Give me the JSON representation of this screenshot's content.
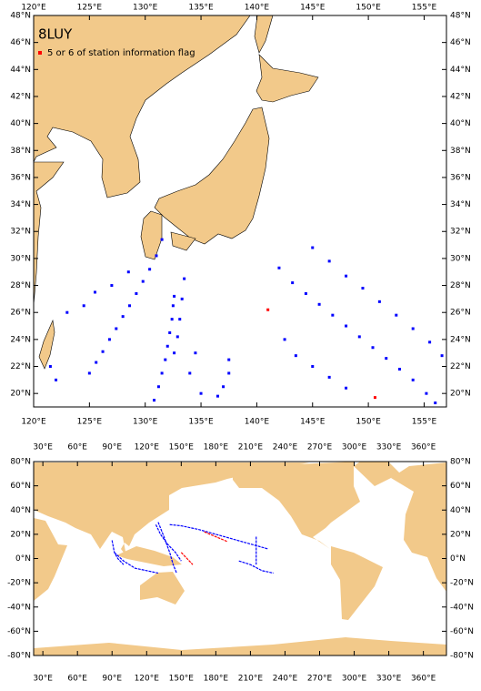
{
  "top_map": {
    "title": "8LUY",
    "legend": "5 or 6 of station information flag",
    "xlim": [
      120,
      157
    ],
    "ylim": [
      19,
      48
    ],
    "xticks": [
      {
        "value": 120,
        "label": "120°E"
      },
      {
        "value": 125,
        "label": "125°E"
      },
      {
        "value": 130,
        "label": "130°E"
      },
      {
        "value": 135,
        "label": "135°E"
      },
      {
        "value": 140,
        "label": "140°E"
      },
      {
        "value": 145,
        "label": "145°E"
      },
      {
        "value": 150,
        "label": "150°E"
      },
      {
        "value": 155,
        "label": "155°E"
      }
    ],
    "yticks": [
      {
        "value": 20,
        "label": "20°N"
      },
      {
        "value": 22,
        "label": "22°N"
      },
      {
        "value": 24,
        "label": "24°N"
      },
      {
        "value": 26,
        "label": "26°N"
      },
      {
        "value": 28,
        "label": "28°N"
      },
      {
        "value": 30,
        "label": "30°N"
      },
      {
        "value": 32,
        "label": "32°N"
      },
      {
        "value": 34,
        "label": "34°N"
      },
      {
        "value": 36,
        "label": "36°N"
      },
      {
        "value": 38,
        "label": "38°N"
      },
      {
        "value": 40,
        "label": "40°N"
      },
      {
        "value": 42,
        "label": "42°N"
      },
      {
        "value": 44,
        "label": "44°N"
      },
      {
        "value": 46,
        "label": "46°N"
      },
      {
        "value": 48,
        "label": "48°N"
      }
    ],
    "station_color": "#0000ff",
    "flag_color": "#ff0000",
    "stations": [
      [
        125,
        21.5
      ],
      [
        125.6,
        22.3
      ],
      [
        126.2,
        23.1
      ],
      [
        126.8,
        24
      ],
      [
        127.4,
        24.8
      ],
      [
        128,
        25.7
      ],
      [
        128.6,
        26.5
      ],
      [
        129.2,
        27.4
      ],
      [
        129.8,
        28.3
      ],
      [
        130.4,
        29.2
      ],
      [
        131,
        30.2
      ],
      [
        131.5,
        31.4
      ],
      [
        130.8,
        19.5
      ],
      [
        131.2,
        20.5
      ],
      [
        131.5,
        21.5
      ],
      [
        131.8,
        22.5
      ],
      [
        132,
        23.5
      ],
      [
        132.2,
        24.5
      ],
      [
        132.4,
        25.5
      ],
      [
        132.5,
        26.5
      ],
      [
        132.6,
        27.2
      ],
      [
        133.5,
        28.5
      ],
      [
        133.3,
        27
      ],
      [
        133.1,
        25.5
      ],
      [
        132.9,
        24.2
      ],
      [
        132.6,
        23
      ],
      [
        142,
        29.3
      ],
      [
        143.2,
        28.2
      ],
      [
        144.4,
        27.4
      ],
      [
        145.6,
        26.6
      ],
      [
        146.8,
        25.8
      ],
      [
        148,
        25
      ],
      [
        149.2,
        24.2
      ],
      [
        150.4,
        23.4
      ],
      [
        151.6,
        22.6
      ],
      [
        152.8,
        21.8
      ],
      [
        154,
        21
      ],
      [
        155.2,
        20
      ],
      [
        156,
        19.3
      ],
      [
        145,
        30.8
      ],
      [
        146.5,
        29.8
      ],
      [
        148,
        28.7
      ],
      [
        149.5,
        27.8
      ],
      [
        151,
        26.8
      ],
      [
        152.5,
        25.8
      ],
      [
        154,
        24.8
      ],
      [
        155.5,
        23.8
      ],
      [
        156.6,
        22.8
      ],
      [
        121.5,
        22
      ],
      [
        122,
        21
      ],
      [
        123,
        26
      ],
      [
        124.5,
        26.5
      ],
      [
        125.5,
        27.5
      ],
      [
        127,
        28
      ],
      [
        128.5,
        29
      ],
      [
        137.5,
        22.5
      ],
      [
        137.5,
        21.5
      ],
      [
        137,
        20.5
      ],
      [
        136.5,
        19.8
      ],
      [
        134.5,
        23
      ],
      [
        134,
        21.5
      ],
      [
        135,
        20
      ],
      [
        142.5,
        24
      ],
      [
        143.5,
        22.8
      ],
      [
        145,
        22
      ],
      [
        146.5,
        21.2
      ],
      [
        148,
        20.4
      ]
    ],
    "flagged": [
      [
        141,
        26.2
      ],
      [
        150.6,
        19.7
      ]
    ]
  },
  "bottom_map": {
    "xlim": [
      22,
      380
    ],
    "ylim": [
      -80,
      80
    ],
    "xticks": [
      {
        "value": 30,
        "label": "30°E"
      },
      {
        "value": 60,
        "label": "60°E"
      },
      {
        "value": 90,
        "label": "90°E"
      },
      {
        "value": 120,
        "label": "120°E"
      },
      {
        "value": 150,
        "label": "150°E"
      },
      {
        "value": 180,
        "label": "180°E"
      },
      {
        "value": 210,
        "label": "210°E"
      },
      {
        "value": 240,
        "label": "240°E"
      },
      {
        "value": 270,
        "label": "270°E"
      },
      {
        "value": 300,
        "label": "300°E"
      },
      {
        "value": 330,
        "label": "330°E"
      },
      {
        "value": 360,
        "label": "360°E"
      }
    ],
    "yticks": [
      {
        "value": -80,
        "label": "-80°N"
      },
      {
        "value": -60,
        "label": "-60°N"
      },
      {
        "value": -40,
        "label": "-40°N"
      },
      {
        "value": -20,
        "label": "-20°N"
      },
      {
        "value": 0,
        "label": "0°N"
      },
      {
        "value": 20,
        "label": "20°N"
      },
      {
        "value": 40,
        "label": "40°N"
      },
      {
        "value": 60,
        "label": "60°N"
      },
      {
        "value": 80,
        "label": "80°N"
      }
    ],
    "tracks": [
      {
        "color": "#0000ff",
        "points": [
          [
            128,
            28
          ],
          [
            132,
            20
          ],
          [
            138,
            12
          ],
          [
            145,
            5
          ],
          [
            150,
            -2
          ]
        ]
      },
      {
        "color": "#0000ff",
        "points": [
          [
            140,
            28
          ],
          [
            150,
            27
          ],
          [
            165,
            24
          ],
          [
            180,
            20
          ],
          [
            195,
            16
          ],
          [
            210,
            12
          ],
          [
            225,
            8
          ]
        ]
      },
      {
        "color": "#0000ff",
        "points": [
          [
            130,
            30
          ],
          [
            135,
            18
          ],
          [
            140,
            5
          ],
          [
            143,
            -5
          ],
          [
            146,
            -12
          ]
        ]
      },
      {
        "color": "#0000ff",
        "points": [
          [
            92,
            5
          ],
          [
            100,
            -2
          ],
          [
            110,
            -8
          ],
          [
            120,
            -10
          ],
          [
            130,
            -12
          ]
        ]
      },
      {
        "color": "#0000ff",
        "points": [
          [
            90,
            15
          ],
          [
            92,
            5
          ],
          [
            95,
            0
          ],
          [
            100,
            -5
          ]
        ]
      },
      {
        "color": "#0000ff",
        "points": [
          [
            215,
            18
          ],
          [
            215,
            8
          ],
          [
            215,
            -5
          ]
        ]
      },
      {
        "color": "#0000ff",
        "points": [
          [
            200,
            -2
          ],
          [
            210,
            -5
          ],
          [
            220,
            -10
          ],
          [
            230,
            -12
          ]
        ]
      },
      {
        "color": "#ff0000",
        "points": [
          [
            150,
            5
          ],
          [
            155,
            0
          ],
          [
            160,
            -5
          ]
        ]
      },
      {
        "color": "#ff0000",
        "points": [
          [
            170,
            22
          ],
          [
            180,
            18
          ],
          [
            190,
            14
          ]
        ]
      }
    ]
  }
}
